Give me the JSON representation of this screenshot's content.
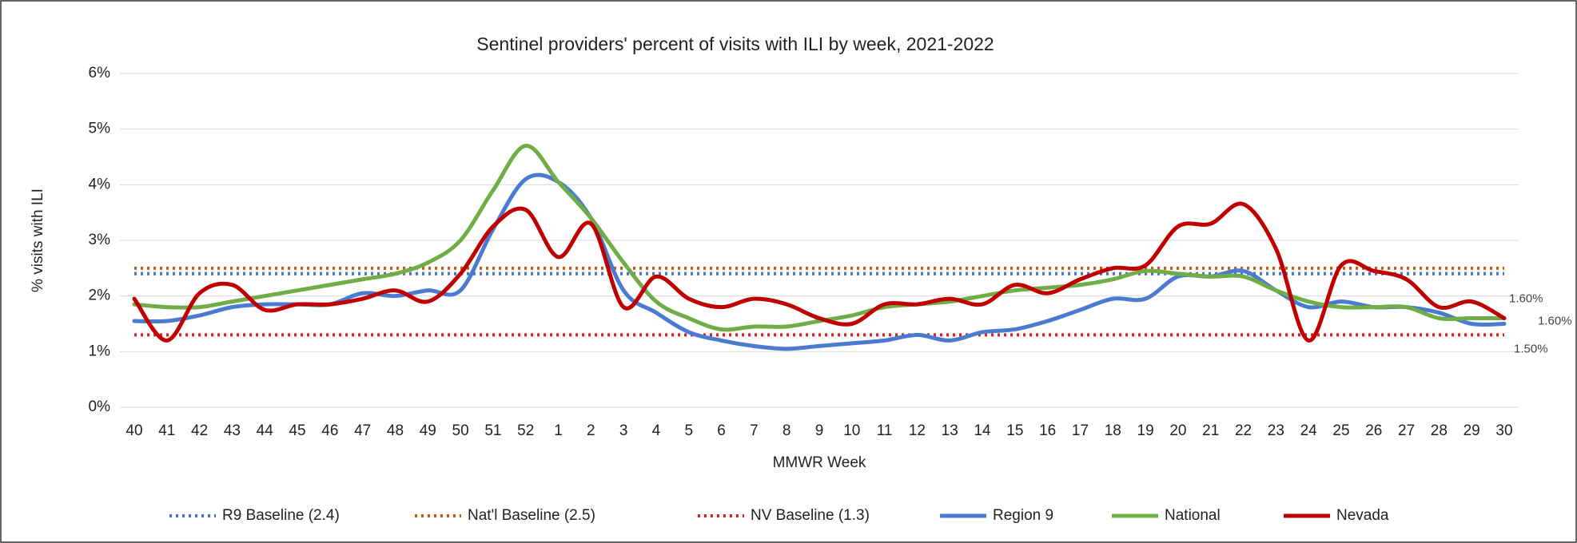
{
  "chart_data": {
    "type": "line",
    "title": "Sentinel providers' percent of visits with ILI by week, 2021-2022",
    "x_label": "MMWR Week",
    "y_label": "% visits with ILI",
    "categories": [
      "40",
      "41",
      "42",
      "43",
      "44",
      "45",
      "46",
      "47",
      "48",
      "49",
      "50",
      "51",
      "52",
      "1",
      "2",
      "3",
      "4",
      "5",
      "6",
      "7",
      "8",
      "9",
      "10",
      "11",
      "12",
      "13",
      "14",
      "15",
      "16",
      "17",
      "18",
      "19",
      "20",
      "21",
      "22",
      "23",
      "24",
      "25",
      "26",
      "27",
      "28",
      "29",
      "30"
    ],
    "ylim": [
      0,
      6
    ],
    "yticks": [
      {
        "value": 0,
        "label": "0%"
      },
      {
        "value": 1,
        "label": "1%"
      },
      {
        "value": 2,
        "label": "2%"
      },
      {
        "value": 3,
        "label": "3%"
      },
      {
        "value": 4,
        "label": "4%"
      },
      {
        "value": 5,
        "label": "5%"
      },
      {
        "value": 6,
        "label": "6%"
      }
    ],
    "grid": true,
    "baselines": [
      {
        "name": "R9 Baseline (2.4)",
        "value": 2.4,
        "color": "#4472c4"
      },
      {
        "name": "Nat'l Baseline (2.5)",
        "value": 2.5,
        "color": "#c55a11"
      },
      {
        "name": "NV Baseline (1.3)",
        "value": 1.3,
        "color": "#e02020"
      }
    ],
    "series": [
      {
        "name": "Region 9",
        "color": "#4a7bd0",
        "values": [
          1.55,
          1.55,
          1.65,
          1.8,
          1.85,
          1.85,
          1.85,
          2.05,
          2.0,
          2.1,
          2.1,
          3.2,
          4.1,
          4.05,
          3.4,
          2.1,
          1.7,
          1.35,
          1.2,
          1.1,
          1.05,
          1.1,
          1.15,
          1.2,
          1.3,
          1.2,
          1.35,
          1.4,
          1.55,
          1.75,
          1.95,
          1.95,
          2.35,
          2.35,
          2.45,
          2.1,
          1.8,
          1.9,
          1.8,
          1.8,
          1.7,
          1.5,
          1.5
        ],
        "value_labels": [
          null,
          null,
          null,
          null,
          null,
          null,
          null,
          null,
          null,
          null,
          null,
          null,
          null,
          null,
          null,
          null,
          null,
          null,
          null,
          null,
          null,
          null,
          null,
          null,
          null,
          null,
          null,
          null,
          null,
          null,
          null,
          null,
          null,
          null,
          null,
          null,
          null,
          null,
          null,
          null,
          null,
          null,
          "1.50%"
        ]
      },
      {
        "name": "National",
        "color": "#70ad47",
        "values": [
          1.85,
          1.8,
          1.8,
          1.9,
          2.0,
          2.1,
          2.2,
          2.3,
          2.4,
          2.6,
          3.0,
          3.9,
          4.7,
          4.05,
          3.4,
          2.6,
          1.9,
          1.6,
          1.4,
          1.45,
          1.45,
          1.55,
          1.65,
          1.8,
          1.85,
          1.9,
          2.0,
          2.1,
          2.15,
          2.2,
          2.3,
          2.45,
          2.4,
          2.35,
          2.35,
          2.1,
          1.9,
          1.8,
          1.8,
          1.8,
          1.6,
          1.6,
          1.6
        ],
        "value_labels": [
          null,
          null,
          null,
          null,
          null,
          null,
          null,
          null,
          null,
          null,
          null,
          null,
          null,
          null,
          null,
          null,
          null,
          null,
          null,
          null,
          null,
          null,
          null,
          null,
          null,
          null,
          null,
          null,
          null,
          null,
          null,
          null,
          null,
          null,
          null,
          null,
          null,
          null,
          null,
          null,
          null,
          null,
          "1.60%"
        ]
      },
      {
        "name": "Nevada",
        "color": "#c00000",
        "values": [
          1.95,
          1.2,
          2.05,
          2.2,
          1.75,
          1.85,
          1.85,
          1.95,
          2.1,
          1.9,
          2.4,
          3.25,
          3.55,
          2.7,
          3.3,
          1.8,
          2.35,
          1.95,
          1.8,
          1.95,
          1.85,
          1.6,
          1.5,
          1.85,
          1.85,
          1.95,
          1.85,
          2.2,
          2.05,
          2.3,
          2.5,
          2.55,
          3.25,
          3.3,
          3.65,
          2.85,
          1.2,
          2.55,
          2.45,
          2.3,
          1.8,
          1.9,
          1.6
        ],
        "value_labels": [
          null,
          null,
          null,
          null,
          null,
          null,
          null,
          null,
          null,
          null,
          null,
          null,
          null,
          null,
          null,
          null,
          null,
          null,
          null,
          null,
          null,
          null,
          null,
          null,
          null,
          null,
          null,
          null,
          null,
          null,
          null,
          null,
          null,
          null,
          null,
          null,
          null,
          null,
          null,
          null,
          null,
          null,
          "1.60%"
        ]
      }
    ]
  }
}
